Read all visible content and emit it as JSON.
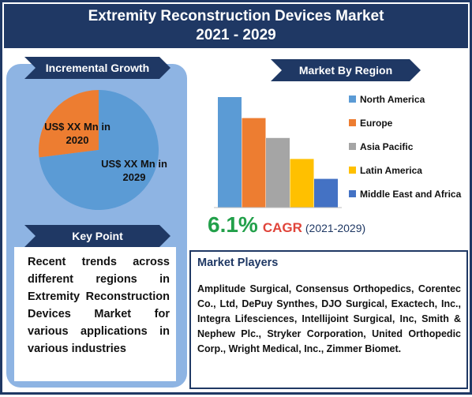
{
  "title": {
    "line1": "Extremity Reconstruction Devices Market",
    "line2": "2021 - 2029"
  },
  "incremental_growth": {
    "label": "Incremental Growth",
    "label_2020": "US$ XX Mn in 2020",
    "label_2029": "US$ XX Mn in 2029",
    "colors": {
      "2020": "#ed7d31",
      "2029": "#5b9bd5"
    }
  },
  "key_point": {
    "label": "Key Point",
    "text": "Recent trends across different regions in Extremity Reconstruction Devices Market for various applications in various industries"
  },
  "market_by_region": {
    "label": "Market By Region"
  },
  "cagr": {
    "value": "6.1%",
    "word": "CAGR",
    "years": "(2021-2029)"
  },
  "market_players": {
    "title": "Market Players",
    "text": "Amplitude Surgical, Consensus Orthopedics, Corentec Co., Ltd, DePuy Synthes, DJO Surgical, Exactech, Inc., Integra Lifesciences, Intellijoint Surgical, Inc, Smith & Nephew Plc., Stryker Corporation, United Orthopedic Corp., Wright Medical, Inc., Zimmer Biomet."
  },
  "chart_data": [
    {
      "type": "pie",
      "title": "Incremental Growth",
      "labels": [
        "US$ XX Mn in 2020",
        "US$ XX Mn in 2029"
      ],
      "values": [
        27,
        73
      ]
    },
    {
      "type": "bar",
      "title": "Market By Region",
      "categories": [
        "North America",
        "Europe",
        "Asia Pacific",
        "Latin America",
        "Middle East and Africa"
      ],
      "values": [
        100,
        81,
        63,
        44,
        26
      ],
      "colors": [
        "#5b9bd5",
        "#ed7d31",
        "#a5a5a5",
        "#ffc000",
        "#4472c4"
      ],
      "legend": "right",
      "ylim": [
        0,
        100
      ],
      "grid": false
    }
  ]
}
